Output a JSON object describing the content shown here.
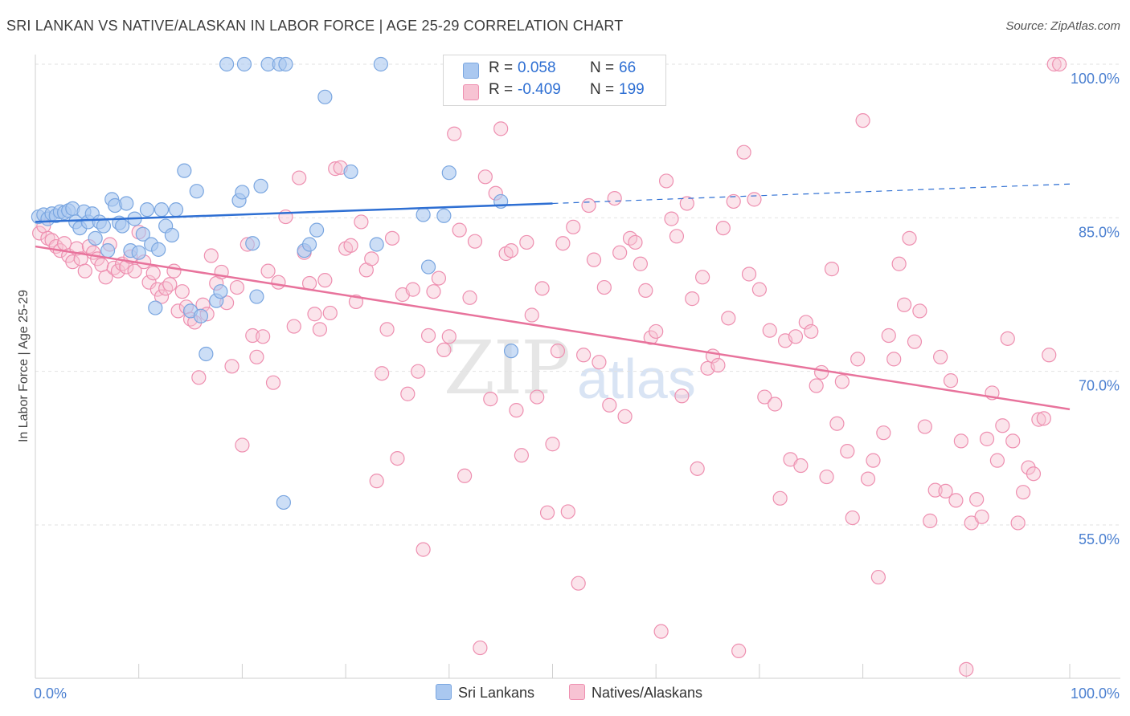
{
  "title": "SRI LANKAN VS NATIVE/ALASKAN IN LABOR FORCE | AGE 25-29 CORRELATION CHART",
  "source": "Source: ZipAtlas.com",
  "watermark": {
    "zip": "ZIP",
    "atlas": "atlas"
  },
  "colors": {
    "blue_fill": "#aac8f0",
    "blue_stroke": "#7aa6e0",
    "blue_line": "#2e6fd3",
    "pink_fill": "#f7c3d3",
    "pink_stroke": "#ee8fb0",
    "pink_line": "#e8739c",
    "tick_label": "#4a7fd0"
  },
  "legend_top": {
    "rows": [
      {
        "r_label": "R =",
        "r_value": "0.058",
        "n_label": "N =",
        "n_value": "66",
        "color": "#aac8f0"
      },
      {
        "r_label": "R =",
        "r_value": "-0.409",
        "n_label": "N =",
        "n_value": "199",
        "color": "#f7c3d3"
      }
    ]
  },
  "legend_bottom": [
    {
      "label": "Sri Lankans",
      "color": "#aac8f0"
    },
    {
      "label": "Natives/Alaskans",
      "color": "#f7c3d3"
    }
  ],
  "chart_data": {
    "type": "scatter",
    "xlabel": "",
    "ylabel": "In Labor Force | Age 25-29",
    "xlim": [
      0,
      100
    ],
    "ylim": [
      40,
      101.5
    ],
    "x_tick_labels": [
      {
        "value": 0,
        "label": "0.0%"
      },
      {
        "value": 100,
        "label": "100.0%"
      }
    ],
    "y_tick_labels": [
      {
        "value": 100,
        "label": "100.0%"
      },
      {
        "value": 85,
        "label": "85.0%"
      },
      {
        "value": 70,
        "label": "70.0%"
      },
      {
        "value": 55,
        "label": "55.0%"
      }
    ],
    "x_minor_ticks": [
      0,
      10,
      20,
      30,
      40,
      50,
      60,
      70,
      80,
      90,
      100
    ],
    "grid": true,
    "series": [
      {
        "name": "Sri Lankans",
        "R": 0.058,
        "N": 66,
        "trend": {
          "x": [
            0,
            50
          ],
          "y": [
            84.6,
            86.4
          ],
          "extend_to": 100,
          "extend_y": 88.3
        },
        "points": [
          [
            0.3,
            85.1
          ],
          [
            0.8,
            85.3
          ],
          [
            1.2,
            84.9
          ],
          [
            1.6,
            85.4
          ],
          [
            2.0,
            85.2
          ],
          [
            2.4,
            85.6
          ],
          [
            2.8,
            85.5
          ],
          [
            3.2,
            85.7
          ],
          [
            3.6,
            85.9
          ],
          [
            3.9,
            84.6
          ],
          [
            4.3,
            84.0
          ],
          [
            4.7,
            85.6
          ],
          [
            5.1,
            84.6
          ],
          [
            5.5,
            85.4
          ],
          [
            5.8,
            83.0
          ],
          [
            6.2,
            84.6
          ],
          [
            6.6,
            84.2
          ],
          [
            7.0,
            81.8
          ],
          [
            7.4,
            86.8
          ],
          [
            7.7,
            86.2
          ],
          [
            8.1,
            84.5
          ],
          [
            8.4,
            84.2
          ],
          [
            8.8,
            86.4
          ],
          [
            9.2,
            81.8
          ],
          [
            9.6,
            84.9
          ],
          [
            10.0,
            81.6
          ],
          [
            10.4,
            83.4
          ],
          [
            10.8,
            85.8
          ],
          [
            11.2,
            82.4
          ],
          [
            11.6,
            76.2
          ],
          [
            11.9,
            81.9
          ],
          [
            12.2,
            85.8
          ],
          [
            12.6,
            84.2
          ],
          [
            13.2,
            83.3
          ],
          [
            13.6,
            85.8
          ],
          [
            14.4,
            89.6
          ],
          [
            15.0,
            75.9
          ],
          [
            15.6,
            87.6
          ],
          [
            16.0,
            75.4
          ],
          [
            16.5,
            71.7
          ],
          [
            17.5,
            76.9
          ],
          [
            17.9,
            77.8
          ],
          [
            18.5,
            100
          ],
          [
            20.2,
            100
          ],
          [
            19.7,
            86.7
          ],
          [
            20.0,
            87.5
          ],
          [
            21.0,
            82.5
          ],
          [
            21.4,
            77.3
          ],
          [
            21.8,
            88.1
          ],
          [
            22.5,
            100
          ],
          [
            23.6,
            100
          ],
          [
            24.2,
            100
          ],
          [
            24.0,
            57.2
          ],
          [
            26.0,
            81.8
          ],
          [
            26.5,
            82.4
          ],
          [
            27.2,
            83.8
          ],
          [
            28.0,
            96.8
          ],
          [
            30.5,
            89.5
          ],
          [
            33.0,
            82.4
          ],
          [
            33.4,
            100
          ],
          [
            37.5,
            85.3
          ],
          [
            38.0,
            80.2
          ],
          [
            39.5,
            85.2
          ],
          [
            40.0,
            89.4
          ],
          [
            45.0,
            86.6
          ],
          [
            46.0,
            72.0
          ]
        ]
      },
      {
        "name": "Natives/Alaskans",
        "R": -0.409,
        "N": 199,
        "trend": {
          "x": [
            0,
            100
          ],
          "y": [
            82.2,
            66.3
          ]
        },
        "points": [
          [
            0.4,
            83.5
          ],
          [
            0.8,
            84.2
          ],
          [
            1.2,
            83.0
          ],
          [
            1.6,
            82.8
          ],
          [
            2.0,
            82.2
          ],
          [
            2.4,
            81.8
          ],
          [
            2.8,
            82.5
          ],
          [
            3.2,
            81.3
          ],
          [
            3.6,
            80.7
          ],
          [
            4.0,
            82.0
          ],
          [
            4.4,
            81.0
          ],
          [
            4.8,
            79.8
          ],
          [
            5.2,
            82.2
          ],
          [
            5.6,
            81.6
          ],
          [
            6.0,
            81.0
          ],
          [
            6.4,
            80.4
          ],
          [
            6.8,
            79.2
          ],
          [
            7.2,
            82.4
          ],
          [
            7.6,
            80.1
          ],
          [
            8.0,
            79.8
          ],
          [
            8.4,
            80.5
          ],
          [
            8.8,
            80.2
          ],
          [
            9.2,
            81.2
          ],
          [
            9.6,
            79.8
          ],
          [
            10.0,
            83.6
          ],
          [
            10.5,
            80.7
          ],
          [
            11.0,
            78.7
          ],
          [
            11.4,
            79.6
          ],
          [
            11.8,
            78.0
          ],
          [
            12.2,
            77.3
          ],
          [
            12.6,
            78.1
          ],
          [
            13.0,
            78.5
          ],
          [
            13.4,
            79.8
          ],
          [
            13.8,
            75.9
          ],
          [
            14.2,
            77.8
          ],
          [
            14.6,
            76.3
          ],
          [
            15.0,
            75.1
          ],
          [
            15.4,
            74.8
          ],
          [
            15.8,
            69.4
          ],
          [
            16.2,
            76.5
          ],
          [
            16.6,
            75.6
          ],
          [
            17.0,
            81.3
          ],
          [
            17.5,
            78.6
          ],
          [
            18.0,
            79.7
          ],
          [
            18.5,
            76.7
          ],
          [
            19.0,
            70.5
          ],
          [
            19.5,
            78.2
          ],
          [
            20.0,
            62.8
          ],
          [
            20.5,
            82.4
          ],
          [
            21.0,
            73.5
          ],
          [
            21.4,
            71.4
          ],
          [
            22.0,
            73.4
          ],
          [
            22.5,
            79.8
          ],
          [
            23.0,
            68.9
          ],
          [
            23.5,
            78.7
          ],
          [
            24.2,
            85.1
          ],
          [
            25.0,
            74.4
          ],
          [
            25.5,
            88.9
          ],
          [
            26.0,
            81.6
          ],
          [
            26.5,
            78.6
          ],
          [
            27.0,
            75.6
          ],
          [
            27.5,
            74.1
          ],
          [
            28.0,
            78.9
          ],
          [
            28.5,
            75.7
          ],
          [
            29.0,
            89.8
          ],
          [
            29.5,
            89.9
          ],
          [
            30.0,
            82.0
          ],
          [
            30.5,
            82.3
          ],
          [
            31.0,
            76.8
          ],
          [
            31.5,
            84.6
          ],
          [
            32.0,
            79.9
          ],
          [
            32.5,
            81.0
          ],
          [
            33.0,
            59.3
          ],
          [
            33.5,
            69.8
          ],
          [
            34.0,
            74.1
          ],
          [
            34.5,
            83.0
          ],
          [
            35.0,
            61.5
          ],
          [
            35.5,
            77.5
          ],
          [
            36.0,
            67.8
          ],
          [
            36.5,
            78.0
          ],
          [
            37.0,
            70.0
          ],
          [
            37.5,
            52.6
          ],
          [
            38.0,
            73.5
          ],
          [
            38.5,
            77.8
          ],
          [
            39.0,
            79.1
          ],
          [
            39.5,
            72.1
          ],
          [
            40.0,
            73.4
          ],
          [
            40.5,
            93.2
          ],
          [
            41.0,
            83.8
          ],
          [
            41.5,
            59.8
          ],
          [
            42.0,
            77.2
          ],
          [
            42.5,
            82.7
          ],
          [
            43.0,
            43.0
          ],
          [
            43.5,
            89.0
          ],
          [
            44.0,
            67.3
          ],
          [
            44.5,
            87.4
          ],
          [
            45.0,
            93.7
          ],
          [
            45.5,
            81.5
          ],
          [
            46.0,
            81.8
          ],
          [
            46.5,
            66.2
          ],
          [
            47.0,
            61.8
          ],
          [
            47.5,
            82.6
          ],
          [
            48.0,
            75.5
          ],
          [
            48.5,
            67.5
          ],
          [
            49.0,
            78.1
          ],
          [
            49.5,
            56.2
          ],
          [
            50.0,
            62.9
          ],
          [
            50.5,
            72.0
          ],
          [
            51.0,
            82.5
          ],
          [
            51.5,
            56.3
          ],
          [
            52.0,
            84.1
          ],
          [
            52.5,
            49.3
          ],
          [
            53.0,
            71.6
          ],
          [
            53.5,
            86.2
          ],
          [
            54.0,
            80.9
          ],
          [
            54.5,
            70.9
          ],
          [
            55.0,
            78.2
          ],
          [
            55.5,
            66.7
          ],
          [
            56.0,
            86.9
          ],
          [
            56.5,
            81.6
          ],
          [
            57.0,
            65.6
          ],
          [
            57.5,
            83.0
          ],
          [
            58.0,
            82.6
          ],
          [
            58.5,
            80.5
          ],
          [
            59.0,
            77.9
          ],
          [
            59.5,
            73.3
          ],
          [
            60.0,
            73.9
          ],
          [
            60.5,
            44.6
          ],
          [
            61.0,
            88.6
          ],
          [
            61.5,
            84.9
          ],
          [
            62.0,
            83.2
          ],
          [
            62.5,
            67.6
          ],
          [
            63.0,
            86.4
          ],
          [
            63.5,
            77.1
          ],
          [
            64.0,
            60.5
          ],
          [
            64.5,
            79.2
          ],
          [
            65.0,
            70.3
          ],
          [
            65.5,
            71.5
          ],
          [
            66.0,
            70.6
          ],
          [
            66.5,
            84.0
          ],
          [
            67.0,
            75.2
          ],
          [
            67.5,
            86.6
          ],
          [
            68.0,
            42.7
          ],
          [
            68.5,
            91.4
          ],
          [
            69.0,
            79.5
          ],
          [
            69.5,
            86.8
          ],
          [
            70.0,
            78.0
          ],
          [
            70.5,
            67.5
          ],
          [
            71.0,
            74.0
          ],
          [
            71.5,
            66.8
          ],
          [
            72.0,
            57.6
          ],
          [
            72.5,
            73.0
          ],
          [
            73.0,
            61.4
          ],
          [
            73.5,
            73.4
          ],
          [
            74.0,
            60.8
          ],
          [
            74.5,
            74.8
          ],
          [
            75.0,
            73.9
          ],
          [
            75.5,
            68.6
          ],
          [
            76.0,
            69.9
          ],
          [
            76.5,
            59.7
          ],
          [
            77.0,
            80.0
          ],
          [
            77.5,
            64.9
          ],
          [
            78.0,
            69.0
          ],
          [
            78.5,
            62.2
          ],
          [
            79.0,
            55.7
          ],
          [
            79.5,
            71.2
          ],
          [
            80.0,
            94.5
          ],
          [
            80.5,
            59.5
          ],
          [
            81.0,
            61.3
          ],
          [
            81.5,
            49.9
          ],
          [
            82.0,
            64.0
          ],
          [
            82.5,
            73.5
          ],
          [
            83.0,
            71.2
          ],
          [
            83.5,
            80.5
          ],
          [
            84.0,
            76.5
          ],
          [
            84.5,
            83.0
          ],
          [
            85.0,
            72.9
          ],
          [
            85.5,
            75.9
          ],
          [
            86.0,
            64.6
          ],
          [
            86.5,
            55.4
          ],
          [
            87.0,
            58.4
          ],
          [
            87.5,
            71.4
          ],
          [
            88.0,
            58.3
          ],
          [
            88.5,
            69.1
          ],
          [
            89.0,
            57.4
          ],
          [
            89.5,
            63.2
          ],
          [
            90.0,
            40.9
          ],
          [
            90.5,
            55.2
          ],
          [
            91.0,
            57.5
          ],
          [
            91.5,
            55.8
          ],
          [
            92.0,
            63.4
          ],
          [
            92.5,
            67.9
          ],
          [
            93.0,
            61.3
          ],
          [
            93.5,
            64.7
          ],
          [
            94.0,
            73.2
          ],
          [
            94.5,
            63.2
          ],
          [
            95.0,
            55.2
          ],
          [
            95.5,
            58.2
          ],
          [
            96.0,
            60.6
          ],
          [
            96.5,
            60.0
          ],
          [
            97.0,
            65.3
          ],
          [
            97.5,
            65.4
          ],
          [
            98.0,
            71.6
          ],
          [
            98.5,
            100
          ],
          [
            99.0,
            100
          ]
        ]
      }
    ]
  }
}
